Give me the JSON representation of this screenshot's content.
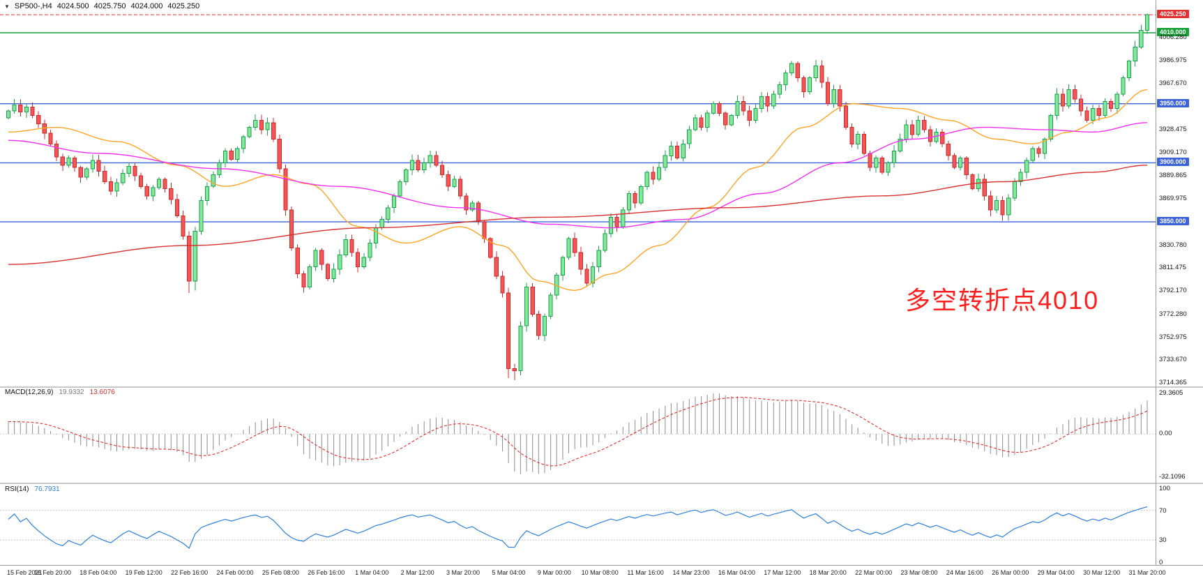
{
  "symbol_line": {
    "icon": "▼",
    "symbol": "SP500-,H4",
    "open": "4024.500",
    "high": "4025.750",
    "low": "4024.000",
    "close": "4025.250"
  },
  "colors": {
    "up_body": "#84E79B",
    "up_edge": "#19A24A",
    "down_body": "#F25656",
    "down_edge": "#C92B2B",
    "ma_fast": "#FFA426",
    "ma_mid": "#EE30EE",
    "ma_slow": "#D63030",
    "line_blue": "#3A62D9",
    "line_green": "#16A038",
    "price_line": "#E23030",
    "macd_hist": "#8C8C8C",
    "macd_signal": "#E03030",
    "rsi_line": "#2F7ED8"
  },
  "chart_data": {
    "main": {
      "type": "candlestick",
      "symbol": "SP500-",
      "timeframe": "H4",
      "last_ohlc": {
        "open": 4024.5,
        "high": 4025.75,
        "low": 4024.0,
        "close": 4025.25
      },
      "price_axis": {
        "y_min": 3714.365,
        "y_max": 4033.0,
        "ticks": [
          "4006.280",
          "3986.975",
          "3967.670",
          "3928.475",
          "3909.170",
          "3889.865",
          "3869.975",
          "3830.780",
          "3811.475",
          "3792.170",
          "3772.280",
          "3752.975",
          "3733.670",
          "3714.365"
        ]
      },
      "time_axis_labels": [
        "15 Feb 2021",
        "16 Feb 20:00",
        "18 Feb 04:00",
        "19 Feb 12:00",
        "22 Feb 16:00",
        "24 Feb 00:00",
        "25 Feb 08:00",
        "26 Feb 16:00",
        "1 Mar 04:00",
        "2 Mar 12:00",
        "3 Mar 20:00",
        "5 Mar 04:00",
        "9 Mar 00:00",
        "10 Mar 08:00",
        "11 Mar 16:00",
        "14 Mar 23:00",
        "16 Mar 04:00",
        "17 Mar 12:00",
        "18 Mar 20:00",
        "22 Mar 00:00",
        "23 Mar 08:00",
        "24 Mar 16:00",
        "26 Mar 00:00",
        "29 Mar 04:00",
        "30 Mar 12:00",
        "31 Mar 20:00"
      ],
      "horizontal_lines": [
        {
          "price": 4025.25,
          "label": "4025.250",
          "color": "#E23030",
          "style": "dashed",
          "badge": true
        },
        {
          "price": 4010.0,
          "label": "4010.000",
          "color": "#16A038",
          "style": "solid",
          "badge": true
        },
        {
          "price": 3950.0,
          "label": "3950.000",
          "color": "#3A62D9",
          "style": "solid",
          "badge": true
        },
        {
          "price": 3900.0,
          "label": "3900.000",
          "color": "#3A62D9",
          "style": "solid",
          "badge": true
        },
        {
          "price": 3850.0,
          "label": "3850.000",
          "color": "#3A62D9",
          "style": "solid",
          "badge": true
        }
      ],
      "annotation": {
        "text": "多空转折点4010",
        "color": "#FF1E1E"
      },
      "candles": {
        "first_open": 3938,
        "closes": [
          3944,
          3949,
          3943,
          3947,
          3940,
          3933,
          3925,
          3916,
          3905,
          3898,
          3904,
          3896,
          3888,
          3895,
          3902,
          3893,
          3884,
          3876,
          3883,
          3891,
          3897,
          3889,
          3880,
          3872,
          3879,
          3886,
          3878,
          3869,
          3855,
          3838,
          3800,
          3842,
          3868,
          3880,
          3890,
          3900,
          3910,
          3903,
          3912,
          3922,
          3930,
          3936,
          3928,
          3934,
          3920,
          3895,
          3860,
          3828,
          3806,
          3795,
          3812,
          3826,
          3814,
          3802,
          3810,
          3822,
          3835,
          3824,
          3812,
          3820,
          3832,
          3845,
          3852,
          3862,
          3872,
          3884,
          3894,
          3902,
          3894,
          3900,
          3906,
          3898,
          3890,
          3880,
          3886,
          3872,
          3860,
          3866,
          3850,
          3836,
          3820,
          3804,
          3790,
          3726,
          3724,
          3762,
          3795,
          3772,
          3754,
          3770,
          3788,
          3805,
          3820,
          3836,
          3824,
          3810,
          3798,
          3812,
          3826,
          3840,
          3854,
          3846,
          3860,
          3874,
          3866,
          3880,
          3892,
          3886,
          3896,
          3906,
          3914,
          3904,
          3916,
          3928,
          3938,
          3930,
          3942,
          3950,
          3942,
          3932,
          3940,
          3952,
          3944,
          3936,
          3946,
          3956,
          3948,
          3958,
          3966,
          3976,
          3984,
          3972,
          3960,
          3972,
          3982,
          3968,
          3950,
          3962,
          3948,
          3930,
          3916,
          3924,
          3908,
          3896,
          3904,
          3892,
          3900,
          3910,
          3920,
          3932,
          3924,
          3936,
          3928,
          3918,
          3926,
          3916,
          3906,
          3896,
          3904,
          3890,
          3878,
          3886,
          3872,
          3860,
          3868,
          3856,
          3870,
          3884,
          3892,
          3902,
          3912,
          3908,
          3920,
          3940,
          3958,
          3948,
          3962,
          3954,
          3944,
          3936,
          3946,
          3940,
          3952,
          3946,
          3958,
          3972,
          3986,
          3998,
          4012,
          4025.25
        ],
        "special_wicks": {
          "3": {
            "high": 3950.5
          },
          "30": {
            "low": 3790
          },
          "31": {
            "low": 3792
          },
          "83": {
            "low": 3718
          },
          "84": {
            "low": 3716
          },
          "165": {
            "low": 3851
          },
          "189": {
            "high": 4026.2
          }
        }
      },
      "moving_averages": [
        {
          "name": "fast",
          "color": "#FFA426",
          "anchors": [
            [
              0,
              3926
            ],
            [
              8,
              3930
            ],
            [
              18,
              3918
            ],
            [
              28,
              3898
            ],
            [
              36,
              3880
            ],
            [
              44,
              3890
            ],
            [
              50,
              3882
            ],
            [
              58,
              3846
            ],
            [
              66,
              3832
            ],
            [
              75,
              3846
            ],
            [
              82,
              3830
            ],
            [
              88,
              3800
            ],
            [
              94,
              3792
            ],
            [
              100,
              3806
            ],
            [
              108,
              3830
            ],
            [
              116,
              3862
            ],
            [
              124,
              3896
            ],
            [
              132,
              3930
            ],
            [
              140,
              3950
            ],
            [
              148,
              3946
            ],
            [
              156,
              3936
            ],
            [
              164,
              3920
            ],
            [
              170,
              3916
            ],
            [
              176,
              3926
            ],
            [
              182,
              3938
            ],
            [
              189,
              3962
            ]
          ]
        },
        {
          "name": "mid",
          "color": "#EE30EE",
          "anchors": [
            [
              0,
              3919
            ],
            [
              15,
              3908
            ],
            [
              35,
              3895
            ],
            [
              55,
              3880
            ],
            [
              75,
              3862
            ],
            [
              90,
              3848
            ],
            [
              100,
              3845
            ],
            [
              112,
              3852
            ],
            [
              125,
              3874
            ],
            [
              138,
              3900
            ],
            [
              150,
              3920
            ],
            [
              162,
              3930
            ],
            [
              172,
              3928
            ],
            [
              180,
              3926
            ],
            [
              189,
              3934
            ]
          ]
        },
        {
          "name": "slow",
          "color": "#D63030",
          "anchors": [
            [
              0,
              3814
            ],
            [
              30,
              3830
            ],
            [
              60,
              3845
            ],
            [
              90,
              3854
            ],
            [
              120,
              3862
            ],
            [
              145,
              3872
            ],
            [
              165,
              3884
            ],
            [
              180,
              3892
            ],
            [
              189,
              3898
            ]
          ]
        }
      ]
    },
    "macd": {
      "type": "macd",
      "label": "MACD(12,26,9)",
      "value_main": "19.9332",
      "value_signal": "13.6076",
      "axis": [
        "29.3605",
        "0.00",
        "-32.1096"
      ],
      "params": {
        "fast": 12,
        "slow": 26,
        "signal": 9
      }
    },
    "rsi": {
      "type": "rsi",
      "label": "RSI(14)",
      "value": "76.7931",
      "axis": [
        "100",
        "70",
        "30",
        "0"
      ],
      "levels": [
        70,
        30
      ],
      "period": 14
    }
  }
}
